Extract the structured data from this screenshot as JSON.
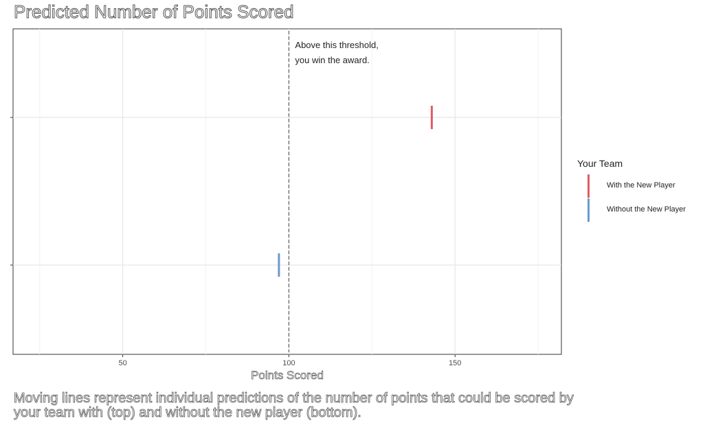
{
  "chart_data": {
    "type": "scatter",
    "title": "Predicted Number of Points Scored",
    "xlabel": "Points Scored",
    "ylabel": "",
    "xlim": [
      17,
      182
    ],
    "x_ticks": [
      50,
      100,
      150
    ],
    "y_categories": [
      "With the New Player",
      "Without the New Player"
    ],
    "grid": true,
    "threshold": 100,
    "annotation": [
      "Above this threshold,",
      "you win the award."
    ],
    "legend_title": "Your Team",
    "legend_position": "right",
    "series": [
      {
        "name": "With the New Player",
        "color": "#e05a66",
        "x": 143,
        "row": "top"
      },
      {
        "name": "Without the New Player",
        "color": "#6f98cc",
        "x": 97,
        "row": "bottom"
      }
    ],
    "caption": "Moving lines represent individual predictions of the number of points that could be scored by your team with (top) and without the new player (bottom)."
  }
}
